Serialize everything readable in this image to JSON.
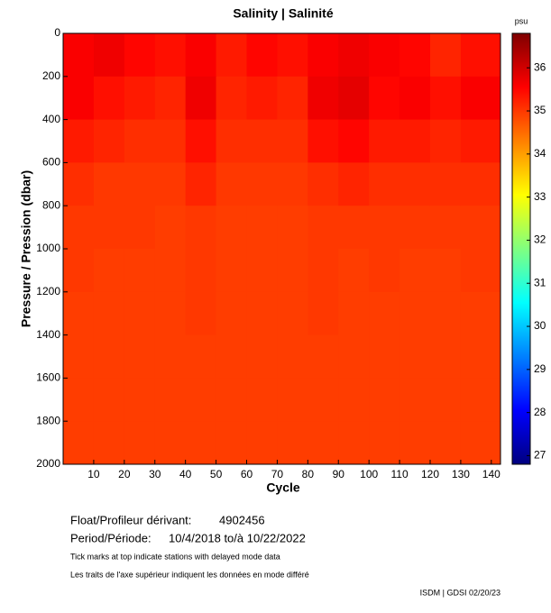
{
  "chart_data": {
    "type": "heatmap",
    "title": "Salinity | Salinité",
    "xlabel": "Cycle",
    "ylabel": "Pressure / Pression (dbar)",
    "x_edges": [
      0,
      10,
      20,
      30,
      40,
      50,
      60,
      70,
      80,
      90,
      100,
      110,
      120,
      130,
      143
    ],
    "y_edges": [
      0,
      200,
      400,
      600,
      800,
      1000,
      1200,
      1400,
      1600,
      1800,
      2000
    ],
    "z": [
      [
        35.6,
        35.7,
        35.5,
        35.4,
        35.6,
        35.3,
        35.5,
        35.4,
        35.6,
        35.7,
        35.6,
        35.5,
        35.2,
        35.4
      ],
      [
        35.6,
        35.4,
        35.3,
        35.2,
        35.7,
        35.2,
        35.3,
        35.2,
        35.7,
        35.8,
        35.5,
        35.6,
        35.4,
        35.6
      ],
      [
        35.3,
        35.2,
        35.1,
        35.1,
        35.4,
        35.1,
        35.1,
        35.1,
        35.4,
        35.5,
        35.3,
        35.3,
        35.2,
        35.3
      ],
      [
        35.1,
        35.0,
        35.0,
        35.0,
        35.2,
        35.0,
        35.0,
        35.0,
        35.1,
        35.2,
        35.1,
        35.1,
        35.1,
        35.1
      ],
      [
        35.0,
        35.0,
        35.0,
        34.95,
        35.0,
        34.95,
        34.95,
        34.95,
        35.0,
        35.0,
        35.0,
        35.0,
        35.0,
        35.0
      ],
      [
        35.0,
        34.95,
        34.95,
        34.95,
        35.0,
        34.95,
        34.95,
        34.95,
        35.0,
        34.95,
        35.0,
        34.95,
        34.95,
        35.0
      ],
      [
        34.95,
        34.95,
        34.95,
        34.95,
        35.0,
        34.95,
        34.95,
        34.95,
        35.0,
        34.95,
        34.95,
        34.95,
        34.95,
        34.95
      ],
      [
        34.95,
        34.95,
        34.95,
        34.95,
        34.95,
        34.95,
        34.95,
        34.95,
        34.95,
        34.95,
        34.95,
        34.95,
        34.95,
        34.95
      ],
      [
        34.95,
        34.95,
        34.95,
        34.95,
        34.95,
        34.95,
        34.95,
        34.95,
        34.95,
        34.95,
        34.95,
        34.95,
        34.95,
        34.95
      ],
      [
        34.95,
        34.95,
        34.95,
        34.95,
        34.95,
        34.95,
        34.95,
        34.95,
        34.95,
        34.95,
        34.95,
        34.95,
        34.95,
        34.95
      ]
    ],
    "xlim": [
      0,
      143
    ],
    "xticks": [
      10,
      20,
      30,
      40,
      50,
      60,
      70,
      80,
      90,
      100,
      110,
      120,
      130,
      140
    ],
    "ylim": [
      0,
      2000
    ],
    "yticks": [
      0,
      200,
      400,
      600,
      800,
      1000,
      1200,
      1400,
      1600,
      1800,
      2000
    ],
    "y_inverted": true,
    "colorbar_label": "psu",
    "clim": [
      26.8,
      36.8
    ],
    "cticks": [
      27,
      28,
      29,
      30,
      31,
      32,
      33,
      34,
      35,
      36
    ],
    "colormap": [
      "#00007f",
      "#0000ff",
      "#0080ff",
      "#00ffff",
      "#80ff80",
      "#ffff00",
      "#ff8000",
      "#ff0000",
      "#7f0000"
    ]
  },
  "footer": {
    "float_label": "Float/Profileur dérivant:",
    "float_id": "4902456",
    "period_label": "Period/Période:",
    "period": "10/4/2018  to/à  10/22/2022",
    "note_en": "Tick marks at top indicate stations with delayed mode data",
    "note_fr": "Les traits de l'axe supérieur indiquent les données en mode différé",
    "credit": "ISDM | GDSI  02/20/23"
  }
}
